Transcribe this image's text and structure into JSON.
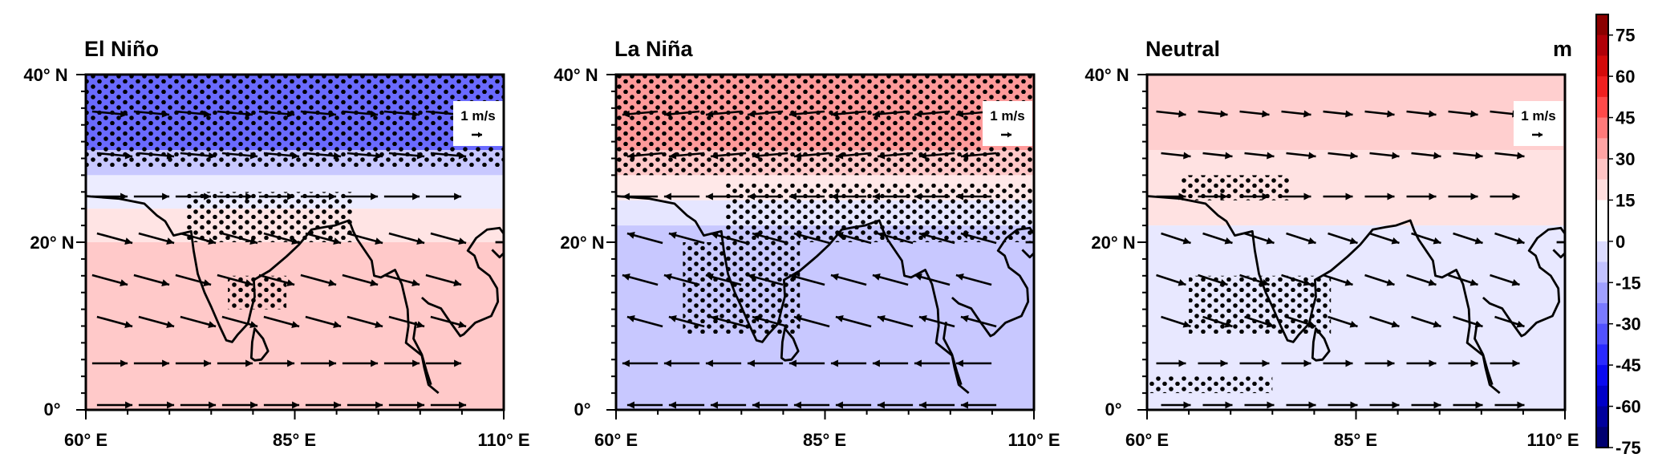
{
  "chart_data": {
    "type": "heatmap",
    "units": "m",
    "colorbar": {
      "ticks": [
        "75",
        "60",
        "45",
        "30",
        "15",
        "0",
        "-15",
        "-30",
        "-45",
        "-60",
        "-75"
      ],
      "colors": [
        "#8b0000",
        "#b00008",
        "#d40a0a",
        "#f02020",
        "#ff4a4a",
        "#ff7a7a",
        "#ffa3a3",
        "#ffc4c4",
        "#ffdede",
        "#ffffff",
        "#ffffff",
        "#dcdcff",
        "#c2c2ff",
        "#a0a0ff",
        "#7a7aff",
        "#5252ff",
        "#2a2aff",
        "#0a0af0",
        "#0000c8",
        "#00009c",
        "#000070"
      ]
    },
    "x_ticks": [
      "60° E",
      "85° E",
      "110° E"
    ],
    "y_ticks": [
      "40° N",
      "20° N",
      "0°"
    ],
    "x_range": [
      60,
      110
    ],
    "y_range": [
      0,
      40
    ],
    "ref_vector": "1 m/s",
    "panels": [
      {
        "title": "El Niño",
        "bands": [
          {
            "lat": [
              31,
              40
            ],
            "value": -40,
            "color": "#6a6aff"
          },
          {
            "lat": [
              28,
              31
            ],
            "value": -12,
            "color": "#c8c8ff"
          },
          {
            "lat": [
              24,
              28
            ],
            "value": -4,
            "color": "#ececff"
          },
          {
            "lat": [
              20,
              24
            ],
            "value": 4,
            "color": "#ffe4e4"
          },
          {
            "lat": [
              0,
              20
            ],
            "value": 10,
            "color": "#ffc9c9"
          }
        ],
        "wind_u": 0.9,
        "stipple": [
          {
            "lon": [
              60,
              110
            ],
            "lat": [
              29,
              40
            ]
          },
          {
            "lon": [
              72,
              92
            ],
            "lat": [
              20,
              26
            ]
          },
          {
            "lon": [
              77,
              84
            ],
            "lat": [
              12,
              16
            ]
          }
        ]
      },
      {
        "title": "La Niña",
        "bands": [
          {
            "lat": [
              31,
              40
            ],
            "value": 30,
            "color": "#ff9a9a"
          },
          {
            "lat": [
              28,
              31
            ],
            "value": 12,
            "color": "#ffc8c8"
          },
          {
            "lat": [
              25,
              28
            ],
            "value": 4,
            "color": "#ffe8e8"
          },
          {
            "lat": [
              22,
              25
            ],
            "value": -4,
            "color": "#e6e6ff"
          },
          {
            "lat": [
              0,
              22
            ],
            "value": -12,
            "color": "#c8c8ff"
          }
        ],
        "wind_u": -0.9,
        "stipple": [
          {
            "lon": [
              60,
              110
            ],
            "lat": [
              28,
              40
            ]
          },
          {
            "lon": [
              73,
              110
            ],
            "lat": [
              20,
              27
            ]
          },
          {
            "lon": [
              68,
              82
            ],
            "lat": [
              9,
              20
            ]
          }
        ]
      },
      {
        "title": "Neutral",
        "bands": [
          {
            "lat": [
              31,
              40
            ],
            "value": 12,
            "color": "#ffcfcf"
          },
          {
            "lat": [
              22,
              31
            ],
            "value": 5,
            "color": "#ffe2e2"
          },
          {
            "lat": [
              0,
              22
            ],
            "value": -5,
            "color": "#e8e8ff"
          }
        ],
        "wind_u": 0.5,
        "stipple": [
          {
            "lon": [
              64,
              77
            ],
            "lat": [
              25,
              28
            ]
          },
          {
            "lon": [
              65,
              82
            ],
            "lat": [
              9,
              16
            ]
          },
          {
            "lon": [
              60,
              75
            ],
            "lat": [
              2,
              4
            ]
          }
        ]
      }
    ]
  }
}
